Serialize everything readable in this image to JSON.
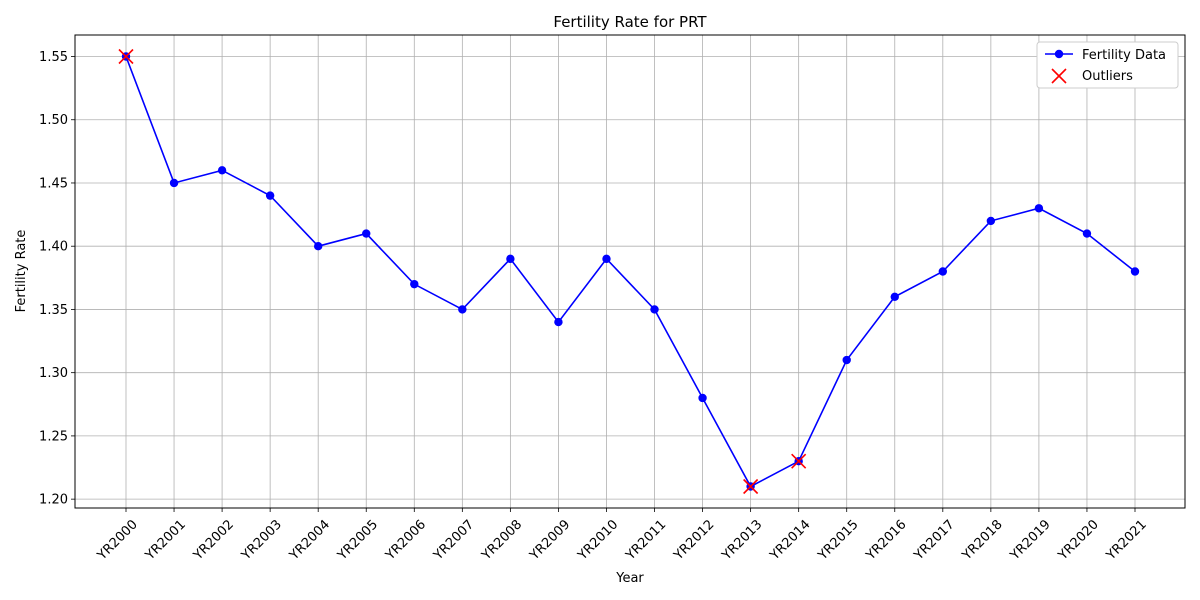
{
  "chart_data": {
    "type": "line",
    "title": "Fertility Rate for PRT",
    "xlabel": "Year",
    "ylabel": "Fertility Rate",
    "categories": [
      "YR2000",
      "YR2001",
      "YR2002",
      "YR2003",
      "YR2004",
      "YR2005",
      "YR2006",
      "YR2007",
      "YR2008",
      "YR2009",
      "YR2010",
      "YR2011",
      "YR2012",
      "YR2013",
      "YR2014",
      "YR2015",
      "YR2016",
      "YR2017",
      "YR2018",
      "YR2019",
      "YR2020",
      "YR2021"
    ],
    "series": [
      {
        "name": "Fertility Data",
        "color": "#0000ff",
        "values": [
          1.55,
          1.45,
          1.46,
          1.44,
          1.4,
          1.41,
          1.37,
          1.35,
          1.39,
          1.34,
          1.39,
          1.35,
          1.28,
          1.21,
          1.23,
          1.31,
          1.36,
          1.38,
          1.42,
          1.43,
          1.41,
          1.38
        ]
      }
    ],
    "outliers": {
      "name": "Outliers",
      "color": "#ff0000",
      "categories": [
        "YR2000",
        "YR2013",
        "YR2014"
      ],
      "values": [
        1.55,
        1.21,
        1.23
      ]
    },
    "yticks": [
      "1.20",
      "1.25",
      "1.30",
      "1.35",
      "1.40",
      "1.45",
      "1.50",
      "1.55"
    ],
    "ylim": [
      1.193,
      1.567
    ],
    "grid": true,
    "legend_position": "top-right"
  }
}
